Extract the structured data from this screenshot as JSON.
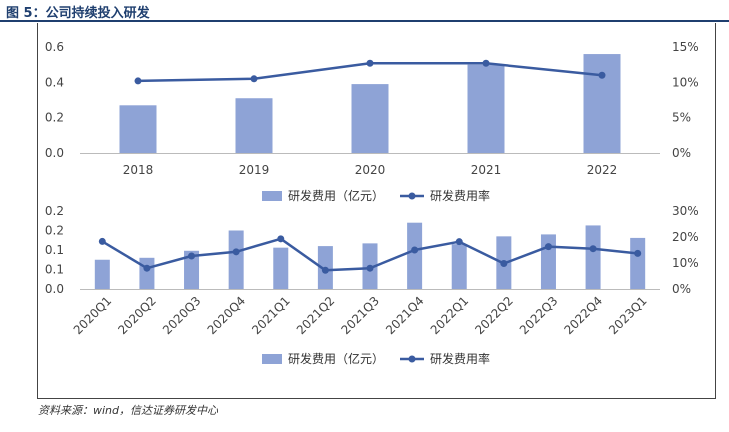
{
  "figure": {
    "title": "图 5：公司持续投入研发",
    "source": "资料来源：wind，信达证券研发中心"
  },
  "colors": {
    "bar": "#8EA3D6",
    "line": "#3A5BA0",
    "title": "#1f3f6f"
  },
  "chart_data": [
    {
      "type": "bar+line",
      "categories": [
        "2018",
        "2019",
        "2020",
        "2021",
        "2022"
      ],
      "series": [
        {
          "name": "研发费用（亿元）",
          "type": "bar",
          "axis": "left",
          "values": [
            0.27,
            0.31,
            0.39,
            0.5,
            0.56
          ]
        },
        {
          "name": "研发费用率",
          "type": "line",
          "axis": "right",
          "values": [
            10.2,
            10.5,
            12.7,
            12.7,
            11.0
          ]
        }
      ],
      "left_axis": {
        "ylim": [
          0,
          0.6
        ],
        "ticks": [
          "0.0",
          "0.2",
          "0.4",
          "0.6"
        ]
      },
      "right_axis": {
        "ylim": [
          0,
          15
        ],
        "ticks": [
          "0%",
          "5%",
          "10%",
          "15%"
        ]
      },
      "legend": {
        "position": "bottom",
        "labels": [
          "研发费用（亿元）",
          "研发费用率"
        ]
      }
    },
    {
      "type": "bar+line",
      "categories": [
        "2020Q1",
        "2020Q2",
        "2020Q3",
        "2020Q4",
        "2021Q1",
        "2021Q2",
        "2021Q3",
        "2021Q4",
        "2022Q1",
        "2022Q2",
        "2022Q3",
        "2022Q4",
        "2023Q1"
      ],
      "series": [
        {
          "name": "研发费用（亿元）",
          "type": "bar",
          "axis": "left",
          "values": [
            0.075,
            0.08,
            0.098,
            0.15,
            0.106,
            0.11,
            0.117,
            0.17,
            0.115,
            0.135,
            0.14,
            0.163,
            0.131
          ]
        },
        {
          "name": "研发费用率",
          "type": "line",
          "axis": "right",
          "values": [
            18.3,
            8.0,
            12.7,
            14.3,
            19.3,
            7.2,
            8.0,
            15.0,
            18.2,
            9.8,
            16.3,
            15.5,
            13.7
          ]
        }
      ],
      "left_axis": {
        "ylim": [
          0,
          0.2
        ],
        "ticks": [
          "0.0",
          "0.1",
          "0.1",
          "0.2",
          "0.2"
        ]
      },
      "right_axis": {
        "ylim": [
          0,
          30
        ],
        "ticks": [
          "0%",
          "10%",
          "20%",
          "30%"
        ]
      },
      "legend": {
        "position": "bottom",
        "labels": [
          "研发费用（亿元）",
          "研发费用率"
        ]
      }
    }
  ]
}
